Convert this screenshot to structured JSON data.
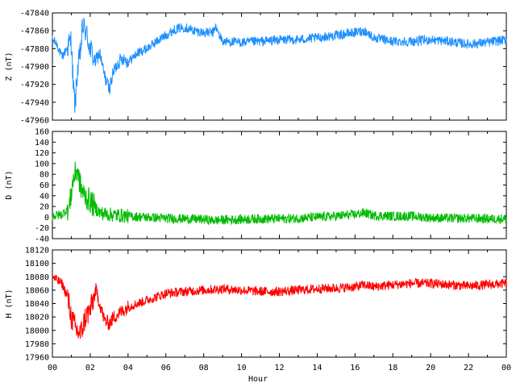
{
  "chart_data": [
    {
      "type": "line",
      "ylabel": "Z (nT)",
      "color": "#1e90ff",
      "ylim": [
        -47960,
        -47840
      ],
      "yticks": [
        "-47840",
        "-47860",
        "-47880",
        "-47900",
        "-47920",
        "-47940",
        "-47960"
      ],
      "xlim": [
        0,
        24
      ],
      "series": [
        {
          "x": [
            0,
            0.25,
            0.5,
            0.75,
            1,
            1.1,
            1.2,
            1.3,
            1.5,
            1.6,
            1.75,
            2,
            2.25,
            2.5,
            2.75,
            3,
            3.25,
            3.5,
            3.75,
            4,
            4.5,
            5,
            5.5,
            6,
            6.5,
            7,
            7.5,
            8,
            8.5,
            8.6,
            9,
            10,
            11,
            12,
            13,
            14,
            15,
            16,
            16.5,
            17,
            18,
            19,
            20,
            21,
            22,
            23,
            24
          ],
          "y": [
            -47870,
            -47875,
            -47890,
            -47880,
            -47870,
            -47920,
            -47945,
            -47910,
            -47880,
            -47855,
            -47860,
            -47880,
            -47895,
            -47885,
            -47910,
            -47925,
            -47905,
            -47895,
            -47890,
            -47895,
            -47885,
            -47880,
            -47872,
            -47865,
            -47858,
            -47856,
            -47860,
            -47862,
            -47862,
            -47855,
            -47872,
            -47873,
            -47872,
            -47870,
            -47870,
            -47868,
            -47865,
            -47862,
            -47860,
            -47868,
            -47872,
            -47872,
            -47870,
            -47872,
            -47875,
            -47873,
            -47870
          ]
        }
      ]
    },
    {
      "type": "line",
      "ylabel": "D (nT)",
      "color": "#00bb00",
      "ylim": [
        -40,
        160
      ],
      "yticks": [
        "160",
        "140",
        "120",
        "100",
        "80",
        "60",
        "40",
        "20",
        "0",
        "-20",
        "-40"
      ],
      "xlim": [
        0,
        24
      ],
      "series": [
        {
          "x": [
            0,
            0.5,
            0.9,
            1.1,
            1.3,
            1.5,
            1.7,
            2,
            2.5,
            3,
            4,
            5,
            6,
            7,
            8,
            8.5,
            9,
            10,
            11,
            12,
            13,
            14,
            15,
            16,
            16.5,
            17,
            18,
            19,
            20,
            21,
            22,
            23,
            24
          ],
          "y": [
            2,
            5,
            20,
            70,
            90,
            55,
            40,
            30,
            8,
            5,
            2,
            0,
            -2,
            -3,
            -4,
            -6,
            -5,
            -4,
            -3,
            -3,
            -2,
            0,
            2,
            5,
            8,
            3,
            2,
            2,
            -1,
            -2,
            -2,
            -3,
            -3
          ]
        }
      ]
    },
    {
      "type": "line",
      "ylabel": "H (nT)",
      "color": "#ff0000",
      "ylim": [
        17960,
        18120
      ],
      "yticks": [
        "18120",
        "18100",
        "18080",
        "18060",
        "18040",
        "18020",
        "18000",
        "17980",
        "17960"
      ],
      "xlim": [
        0,
        24
      ],
      "series": [
        {
          "x": [
            0,
            0.5,
            0.8,
            1,
            1.25,
            1.5,
            1.75,
            2,
            2.3,
            2.5,
            2.75,
            3,
            3.25,
            3.5,
            4,
            4.5,
            5,
            5.5,
            6,
            7,
            8,
            9,
            10,
            11,
            12,
            13,
            14,
            15,
            16,
            16.5,
            17,
            18,
            19,
            20,
            21,
            22,
            23,
            24
          ],
          "y": [
            18080,
            18070,
            18050,
            18020,
            18000,
            17995,
            18020,
            18030,
            18060,
            18040,
            18015,
            18010,
            18020,
            18025,
            18035,
            18040,
            18045,
            18050,
            18055,
            18058,
            18060,
            18062,
            18060,
            18058,
            18058,
            18060,
            18062,
            18063,
            18065,
            18068,
            18065,
            18068,
            18070,
            18070,
            18068,
            18066,
            18068,
            18070
          ]
        }
      ]
    }
  ],
  "xaxis": {
    "label": "Hour",
    "ticks": [
      "00",
      "02",
      "04",
      "06",
      "08",
      "10",
      "12",
      "14",
      "16",
      "18",
      "20",
      "22",
      "00"
    ]
  }
}
